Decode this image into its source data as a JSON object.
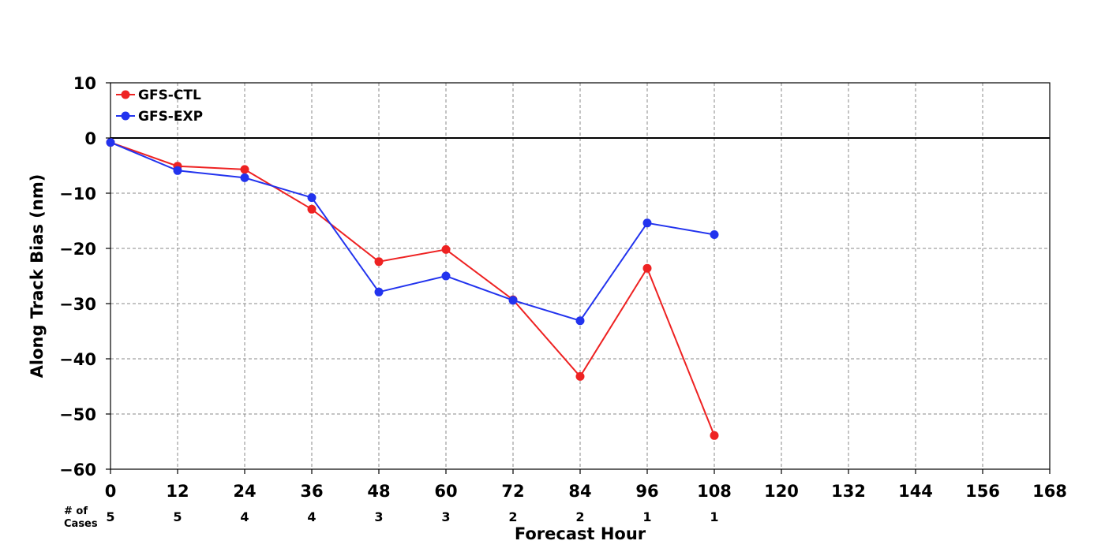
{
  "chart_data": {
    "type": "line",
    "title": "",
    "xlabel": "Forecast Hour",
    "ylabel": "Along Track Bias (nm)",
    "xlim": [
      0,
      168
    ],
    "ylim": [
      -60,
      10
    ],
    "x_ticks": [
      0,
      12,
      24,
      36,
      48,
      60,
      72,
      84,
      96,
      108,
      120,
      132,
      144,
      156,
      168
    ],
    "y_ticks": [
      10,
      0,
      -10,
      -20,
      -30,
      -40,
      -50,
      -60
    ],
    "x_tick_labels": [
      "0",
      "12",
      "24",
      "36",
      "48",
      "60",
      "72",
      "84",
      "96",
      "108",
      "120",
      "132",
      "144",
      "156",
      "168"
    ],
    "y_tick_labels": [
      "10",
      "0",
      "−10",
      "−20",
      "−30",
      "−40",
      "−50",
      "−60"
    ],
    "grid": true,
    "legend_position": "top-left",
    "zero_line": true,
    "series": [
      {
        "name": "GFS-CTL",
        "color": "#ee2222",
        "x": [
          0,
          12,
          24,
          36,
          48,
          60,
          72,
          84,
          96,
          108
        ],
        "values": [
          -0.8,
          -5.1,
          -5.7,
          -12.9,
          -22.4,
          -20.2,
          -29.3,
          -43.2,
          -23.6,
          -53.9
        ]
      },
      {
        "name": "GFS-EXP",
        "color": "#2233ee",
        "x": [
          0,
          12,
          24,
          36,
          48,
          60,
          72,
          84,
          96,
          108
        ],
        "values": [
          -0.8,
          -5.9,
          -7.2,
          -10.8,
          -27.9,
          -25.0,
          -29.4,
          -33.1,
          -15.4,
          -17.5
        ]
      }
    ],
    "cases": {
      "label_line1": "# of",
      "label_line2": "Cases",
      "x": [
        0,
        12,
        24,
        36,
        48,
        60,
        72,
        84,
        96,
        108
      ],
      "counts": [
        "5",
        "5",
        "4",
        "4",
        "3",
        "3",
        "2",
        "2",
        "1",
        "1"
      ]
    }
  }
}
